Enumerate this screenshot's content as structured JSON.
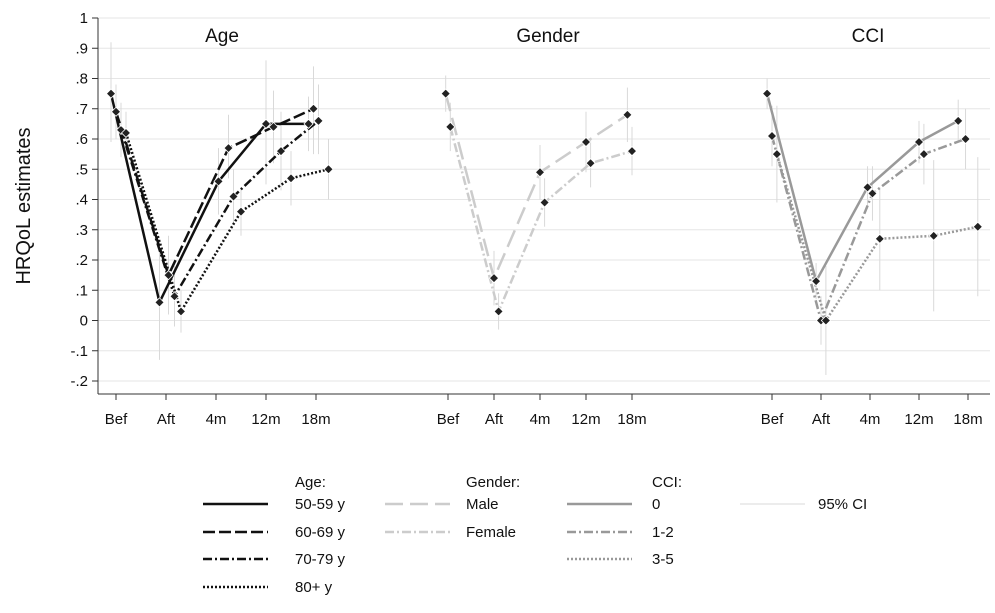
{
  "chart_data": {
    "type": "line",
    "ylabel": "HRQoL estimates",
    "ylim": [
      -0.25,
      1.0
    ],
    "yticks": [
      {
        "value": 1.0,
        "label": "1"
      },
      {
        "value": 0.9,
        "label": ".9"
      },
      {
        "value": 0.8,
        "label": ".8"
      },
      {
        "value": 0.7,
        "label": ".7"
      },
      {
        "value": 0.6,
        "label": ".6"
      },
      {
        "value": 0.5,
        "label": ".5"
      },
      {
        "value": 0.4,
        "label": ".4"
      },
      {
        "value": 0.3,
        "label": ".3"
      },
      {
        "value": 0.2,
        "label": ".2"
      },
      {
        "value": 0.1,
        "label": ".1"
      },
      {
        "value": 0.0,
        "label": "0"
      },
      {
        "value": -0.1,
        "label": "-.1"
      },
      {
        "value": -0.2,
        "label": "-.2"
      }
    ],
    "grid": true,
    "ci_color": "#d9d9d9",
    "panels": [
      {
        "title": "Age",
        "categories": [
          "Bef",
          "Aft",
          "4m",
          "12m",
          "18m"
        ],
        "series": [
          {
            "style": "solid",
            "color": "#111111",
            "x": [
              -0.1,
              0.87,
              2.05,
              3.0,
              3.85
            ],
            "y": [
              0.75,
              0.06,
              0.46,
              0.65,
              0.65
            ],
            "ci": [
              [
                0.59,
                0.92
              ],
              [
                -0.13,
                0.25
              ],
              [
                0.35,
                0.57
              ],
              [
                0.45,
                0.86
              ],
              [
                0.56,
                0.74
              ]
            ]
          },
          {
            "style": "dashed",
            "color": "#111111",
            "x": [
              0.0,
              1.05,
              2.25,
              3.15,
              3.95
            ],
            "y": [
              0.69,
              0.15,
              0.57,
              0.64,
              0.7
            ],
            "ci": [
              [
                0.6,
                0.78
              ],
              [
                0.02,
                0.28
              ],
              [
                0.47,
                0.68
              ],
              [
                0.52,
                0.76
              ],
              [
                0.55,
                0.84
              ]
            ]
          },
          {
            "style": "dashdot",
            "color": "#111111",
            "x": [
              0.1,
              1.17,
              2.35,
              3.3,
              4.05
            ],
            "y": [
              0.63,
              0.08,
              0.41,
              0.56,
              0.66
            ],
            "ci": [
              [
                0.54,
                0.72
              ],
              [
                -0.02,
                0.18
              ],
              [
                0.32,
                0.5
              ],
              [
                0.43,
                0.69
              ],
              [
                0.55,
                0.78
              ]
            ]
          },
          {
            "style": "dotted",
            "color": "#111111",
            "x": [
              0.2,
              1.3,
              2.5,
              3.5,
              4.25
            ],
            "y": [
              0.62,
              0.03,
              0.36,
              0.47,
              0.5
            ],
            "ci": [
              [
                0.55,
                0.69
              ],
              [
                -0.04,
                0.1
              ],
              [
                0.28,
                0.44
              ],
              [
                0.38,
                0.56
              ],
              [
                0.4,
                0.6
              ]
            ]
          }
        ]
      },
      {
        "title": "Gender",
        "categories": [
          "Bef",
          "Aft",
          "4m",
          "12m",
          "18m"
        ],
        "series": [
          {
            "style": "longdash",
            "color": "#cccccc",
            "x": [
              -0.05,
              1.0,
              2.0,
              3.0,
              3.9
            ],
            "y": [
              0.75,
              0.14,
              0.49,
              0.59,
              0.68
            ],
            "ci": [
              [
                0.69,
                0.81
              ],
              [
                0.05,
                0.23
              ],
              [
                0.4,
                0.58
              ],
              [
                0.49,
                0.69
              ],
              [
                0.59,
                0.77
              ]
            ]
          },
          {
            "style": "dashdot",
            "color": "#cccccc",
            "x": [
              0.05,
              1.1,
              2.1,
              3.1,
              4.0
            ],
            "y": [
              0.64,
              0.03,
              0.39,
              0.52,
              0.56
            ],
            "ci": [
              [
                0.56,
                0.72
              ],
              [
                -0.03,
                0.09
              ],
              [
                0.31,
                0.47
              ],
              [
                0.44,
                0.6
              ],
              [
                0.48,
                0.64
              ]
            ]
          }
        ]
      },
      {
        "title": "CCI",
        "categories": [
          "Bef",
          "Aft",
          "4m",
          "12m",
          "18m"
        ],
        "series": [
          {
            "style": "solid",
            "color": "#999999",
            "x": [
              -0.1,
              0.9,
              1.95,
              3.0,
              3.8
            ],
            "y": [
              0.75,
              0.13,
              0.44,
              0.59,
              0.66
            ],
            "ci": [
              [
                0.7,
                0.8
              ],
              [
                0.07,
                0.19
              ],
              [
                0.37,
                0.51
              ],
              [
                0.52,
                0.66
              ],
              [
                0.59,
                0.73
              ]
            ]
          },
          {
            "style": "dashdot",
            "color": "#999999",
            "x": [
              0.0,
              1.0,
              2.05,
              3.1,
              3.95
            ],
            "y": [
              0.61,
              0.0,
              0.42,
              0.55,
              0.6
            ],
            "ci": [
              [
                0.51,
                0.71
              ],
              [
                -0.08,
                0.08
              ],
              [
                0.33,
                0.51
              ],
              [
                0.45,
                0.65
              ],
              [
                0.5,
                0.7
              ]
            ]
          },
          {
            "style": "dotted",
            "color": "#999999",
            "x": [
              0.1,
              1.1,
              2.2,
              3.3,
              4.2
            ],
            "y": [
              0.55,
              0.0,
              0.27,
              0.28,
              0.31
            ],
            "ci": [
              [
                0.39,
                0.71
              ],
              [
                -0.18,
                0.18
              ],
              [
                0.1,
                0.44
              ],
              [
                0.03,
                0.53
              ],
              [
                0.08,
                0.54
              ]
            ]
          }
        ]
      }
    ],
    "legend": {
      "placement": "bottom",
      "columns": [
        {
          "title": "Age:",
          "items": [
            {
              "label": "50-59 y",
              "style": "solid",
              "color": "#111111"
            },
            {
              "label": "60-69 y",
              "style": "dashed",
              "color": "#111111"
            },
            {
              "label": "70-79 y",
              "style": "dashdot",
              "color": "#111111"
            },
            {
              "label": "80+ y",
              "style": "dotted",
              "color": "#111111"
            }
          ]
        },
        {
          "title": "Gender:",
          "items": [
            {
              "label": "Male",
              "style": "longdash",
              "color": "#cccccc"
            },
            {
              "label": "Female",
              "style": "dashdot",
              "color": "#cccccc"
            }
          ]
        },
        {
          "title": "CCI:",
          "items": [
            {
              "label": "0",
              "style": "solid",
              "color": "#999999"
            },
            {
              "label": "1-2",
              "style": "dashdot",
              "color": "#999999"
            },
            {
              "label": "3-5",
              "style": "dotted",
              "color": "#999999"
            }
          ]
        },
        {
          "title": "",
          "items": [
            {
              "label": "95% CI",
              "style": "thin",
              "color": "#d9d9d9"
            }
          ]
        }
      ]
    }
  }
}
